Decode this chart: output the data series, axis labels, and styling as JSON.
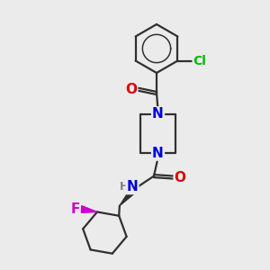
{
  "bg_color": "#ebebeb",
  "atom_colors": {
    "C": "#303030",
    "N": "#0000dd",
    "O": "#dd0000",
    "Cl": "#00bb00",
    "F": "#cc00cc",
    "H": "#808080"
  },
  "bond_color": "#303030",
  "bond_width": 1.6,
  "font_size": 10.5
}
